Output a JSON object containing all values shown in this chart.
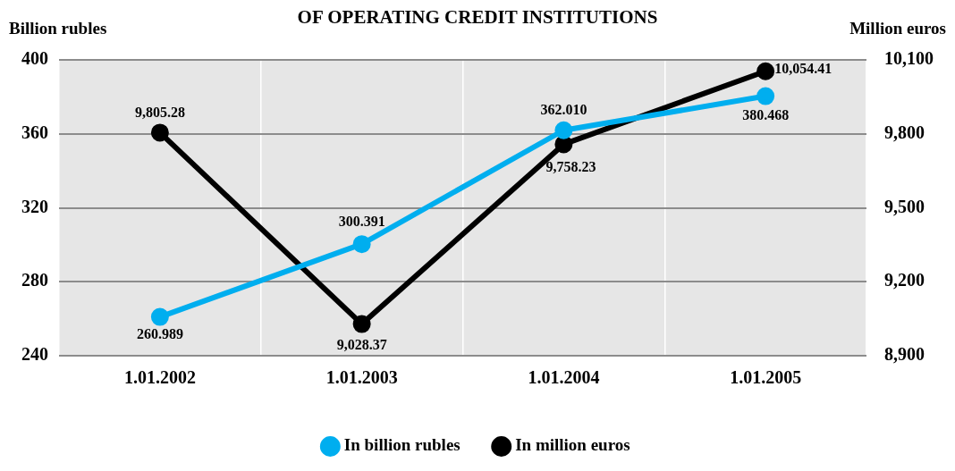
{
  "chart_data": {
    "type": "line",
    "title": "OF OPERATING CREDIT INSTITUTIONS",
    "ylabel": "Billion rubles",
    "y2label": "Million euros",
    "categories": [
      "1.01.2002",
      "1.01.2003",
      "1.01.2004",
      "1.01.2005"
    ],
    "series": [
      {
        "name": "In billion rubles",
        "color": "#00aeef",
        "values": [
          260.989,
          300.391,
          362.01,
          380.468
        ],
        "value_labels": [
          "260.989",
          "300.391",
          "362.010",
          "380.468"
        ]
      },
      {
        "name": "In million euros",
        "color": "#000000",
        "axis": "y2",
        "values": [
          9805.28,
          9028.37,
          9758.23,
          10054.41
        ],
        "value_labels": [
          "9,805.28",
          "9,028.37",
          "9,758.23",
          "10,054.41"
        ]
      }
    ],
    "ylim": [
      240,
      400
    ],
    "yticks": [
      240,
      280,
      320,
      360,
      400
    ],
    "y2lim": [
      8900,
      10100
    ],
    "y2ticks": [
      {
        "value": 8900,
        "label": "8,900"
      },
      {
        "value": 9200,
        "label": "9,200"
      },
      {
        "value": 9500,
        "label": "9,500"
      },
      {
        "value": 9800,
        "label": "9,800"
      },
      {
        "value": 10100,
        "label": "10,100"
      }
    ],
    "grid": true,
    "legend": "bottom",
    "marker": "circle",
    "line_style": "solid"
  }
}
